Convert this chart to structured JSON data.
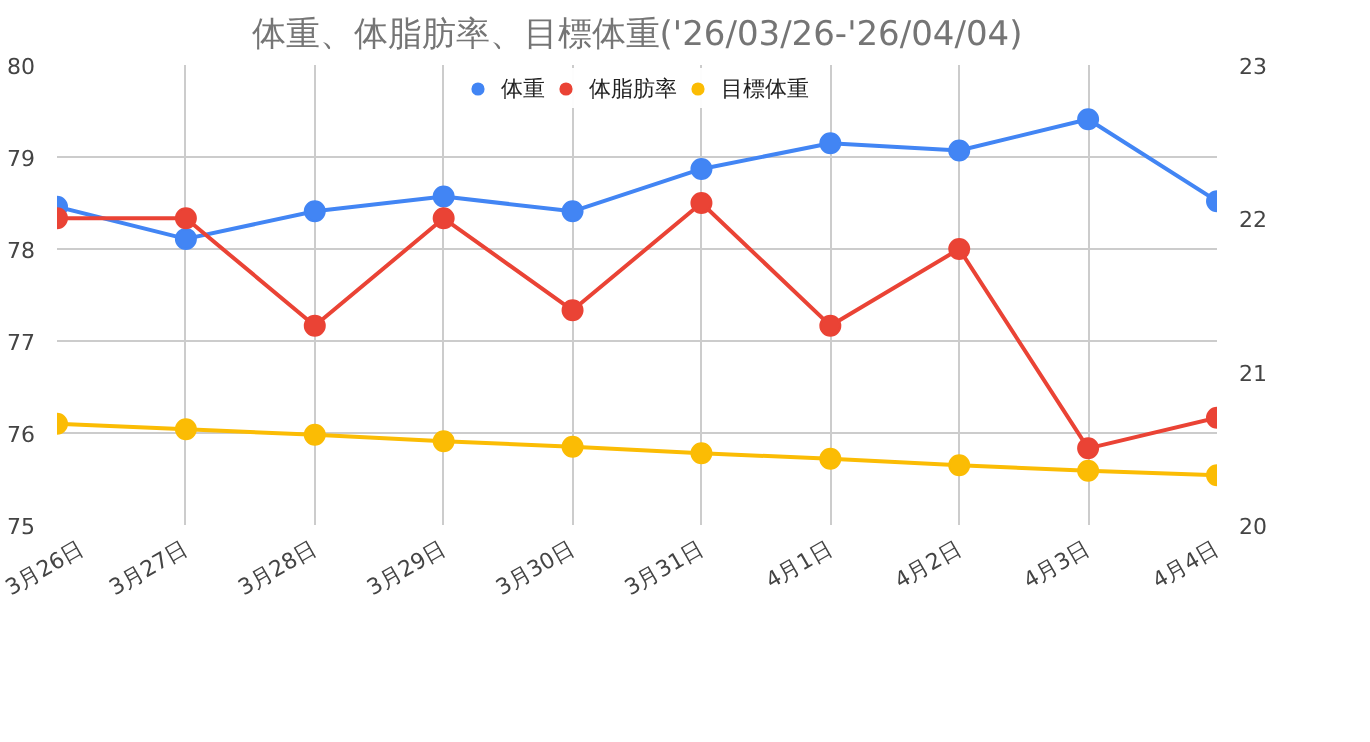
{
  "chart_data": {
    "type": "line",
    "title": "体重、体脂肪率、目標体重('26/03/26-'26/04/04)",
    "categories": [
      "3月26日",
      "3月27日",
      "3月28日",
      "3月29日",
      "3月30日",
      "3月31日",
      "4月1日",
      "4月2日",
      "4月3日",
      "4月4日"
    ],
    "series": [
      {
        "name": "体重",
        "color": "#4285f4",
        "values": [
          78.46,
          78.11,
          78.41,
          78.57,
          78.41,
          78.87,
          79.15,
          79.07,
          79.41,
          78.52
        ]
      },
      {
        "name": "体脂肪率",
        "color": "#ea4335",
        "axis": "y2",
        "values": [
          22.0,
          22.0,
          21.3,
          22.0,
          21.4,
          22.1,
          21.3,
          21.8,
          20.5,
          20.7
        ]
      },
      {
        "name": "目標体重",
        "color": "#fbbc04",
        "values": [
          76.1,
          76.04,
          75.98,
          75.91,
          75.85,
          75.78,
          75.72,
          75.65,
          75.59,
          75.54
        ]
      }
    ],
    "ylim": [
      75,
      80
    ],
    "yticks": [
      75,
      76,
      77,
      78,
      79,
      80
    ],
    "y2lim": [
      20,
      23
    ],
    "y2ticks": [
      20,
      21,
      22,
      23
    ],
    "grid": true,
    "legend": "top",
    "marker": "circle",
    "line_style": "solid"
  }
}
